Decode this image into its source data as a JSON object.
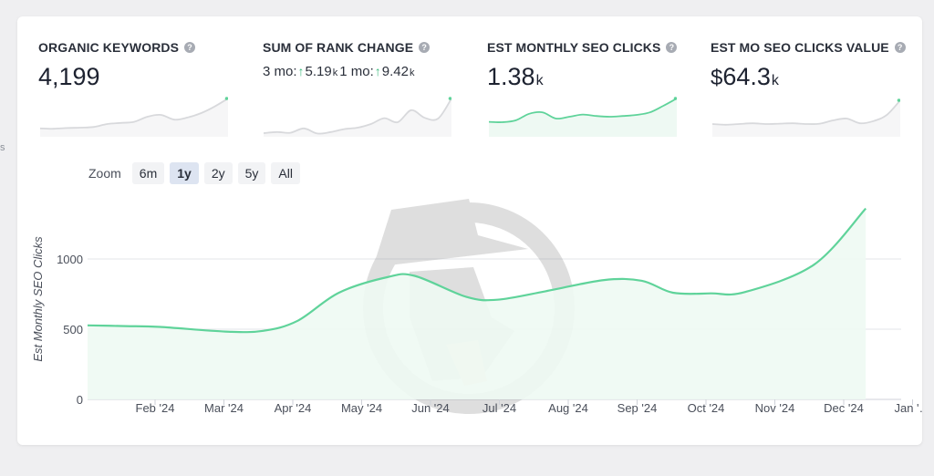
{
  "edge_fragment": "s",
  "metrics": [
    {
      "label": "ORGANIC KEYWORDS",
      "value": "4,199",
      "unit": "",
      "prefix": ""
    },
    {
      "label": "SUM OF RANK CHANGE",
      "rank": {
        "a_label": "3 mo:",
        "a_value": "5.19",
        "a_unit": "k",
        "b_label": "1 mo:",
        "b_value": "9.42",
        "b_unit": "k"
      }
    },
    {
      "label": "EST MONTHLY SEO CLICKS",
      "value": "1.38",
      "unit": "k",
      "prefix": ""
    },
    {
      "label": "EST MO SEO CLICKS VALUE",
      "value": "64.3",
      "unit": "k",
      "prefix": "$"
    }
  ],
  "zoom": {
    "label": "Zoom",
    "options": [
      "6m",
      "1y",
      "2y",
      "5y",
      "All"
    ],
    "active": "1y"
  },
  "colors": {
    "line": "#5fd39a",
    "area": "#eef9f3",
    "gray_line": "#d8d9dc",
    "gray_area": "#f6f6f7"
  },
  "sparklines": [
    {
      "style": "gray",
      "values": [
        0.18,
        0.17,
        0.19,
        0.2,
        0.22,
        0.3,
        0.33,
        0.36,
        0.5,
        0.55,
        0.42,
        0.48,
        0.6,
        0.78,
        1.0
      ]
    },
    {
      "style": "gray",
      "values": [
        0.05,
        0.08,
        0.06,
        0.18,
        0.04,
        0.08,
        0.16,
        0.2,
        0.3,
        0.46,
        0.35,
        0.68,
        0.47,
        0.45,
        1.0
      ]
    },
    {
      "style": "green",
      "values": [
        0.36,
        0.35,
        0.4,
        0.58,
        0.62,
        0.45,
        0.5,
        0.56,
        0.52,
        0.5,
        0.52,
        0.55,
        0.62,
        0.8,
        1.0
      ]
    },
    {
      "style": "gray",
      "values": [
        0.3,
        0.28,
        0.3,
        0.32,
        0.3,
        0.31,
        0.32,
        0.3,
        0.31,
        0.4,
        0.45,
        0.32,
        0.38,
        0.55,
        0.95
      ]
    }
  ],
  "chart_data": {
    "type": "area",
    "ylabel": "Est Monthly SEO Clicks",
    "ylim": [
      0,
      1450
    ],
    "yticks": [
      0,
      500,
      1000
    ],
    "x_ticks": [
      "Feb '24",
      "Mar '24",
      "Apr '24",
      "May '24",
      "Jun '24",
      "Jul '24",
      "Aug '24",
      "Sep '24",
      "Oct '24",
      "Nov '24",
      "Dec '24",
      "Jan '…"
    ],
    "grid": true,
    "series": [
      {
        "values": [
          527,
          522,
          516,
          483,
          488,
          560,
          760,
          870,
          880,
          730,
          710,
          770,
          850,
          845,
          760,
          755,
          765,
          960,
          1360
        ]
      }
    ],
    "x": [
      0.0,
      0.55,
      1.05,
      2.0,
      2.55,
      3.05,
      3.65,
      4.35,
      4.75,
      5.5,
      5.95,
      6.65,
      7.5,
      8.05,
      8.5,
      9.05,
      9.55,
      10.55,
      11.3
    ]
  }
}
